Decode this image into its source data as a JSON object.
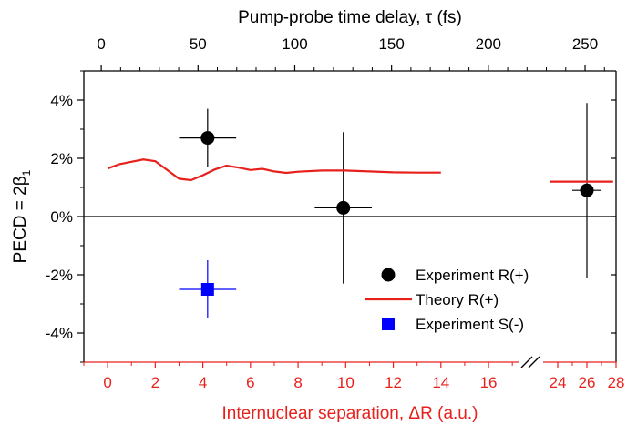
{
  "chart_data": {
    "type": "scatter",
    "title": "",
    "top_axis": {
      "label": "Pump-probe time delay, τ (fs)",
      "range": [
        -9,
        266
      ],
      "ticks": [
        0,
        50,
        100,
        150,
        200,
        250
      ],
      "tick_labels": [
        "0",
        "50",
        "100",
        "150",
        "200",
        "250"
      ]
    },
    "bottom_axis": {
      "label": "Internuclear separation, ΔR (a.u.)",
      "segments": [
        {
          "range": [
            -1,
            17.3
          ],
          "ticks": [
            0,
            2,
            4,
            6,
            8,
            10,
            12,
            14,
            16
          ],
          "tick_labels": [
            "0",
            "2",
            "4",
            "6",
            "8",
            "10",
            "12",
            "14",
            "16"
          ]
        },
        {
          "range": [
            23.0,
            28.0
          ],
          "ticks": [
            24,
            26,
            28
          ],
          "tick_labels": [
            "24",
            "26",
            "28"
          ]
        }
      ],
      "color": "#e8201c"
    },
    "y_axis": {
      "label": "PECD = 2β1",
      "range": [
        -5.0,
        5.0
      ],
      "ticks": [
        -4,
        -2,
        0,
        2,
        4
      ],
      "tick_labels": [
        "-4%",
        "-2%",
        "0%",
        "2%",
        "4%"
      ],
      "unit": "%"
    },
    "legend_position": "lower-right",
    "series": [
      {
        "name": "Experiment R(+)",
        "kind": "points",
        "marker": "circle",
        "color": "#000000",
        "points": [
          {
            "x": 4.2,
            "y": 2.7,
            "xerr": 1.2,
            "yerr": 1.0
          },
          {
            "x": 9.9,
            "y": 0.3,
            "xerr": 1.2,
            "yerr": 2.6
          },
          {
            "x": 26.0,
            "y": 0.9,
            "xerr": 1.0,
            "yerr": 3.0
          }
        ]
      },
      {
        "name": "Theory R(+)",
        "kind": "line",
        "color": "#e8201c",
        "segments": [
          [
            [
              0.0,
              1.65
            ],
            [
              0.5,
              1.8
            ],
            [
              1.0,
              1.88
            ],
            [
              1.5,
              1.96
            ],
            [
              2.0,
              1.9
            ],
            [
              2.5,
              1.6
            ],
            [
              3.0,
              1.3
            ],
            [
              3.5,
              1.25
            ],
            [
              4.0,
              1.42
            ],
            [
              4.5,
              1.62
            ],
            [
              5.0,
              1.75
            ],
            [
              5.5,
              1.68
            ],
            [
              6.0,
              1.6
            ],
            [
              6.5,
              1.64
            ],
            [
              7.0,
              1.55
            ],
            [
              7.5,
              1.5
            ],
            [
              8.0,
              1.54
            ],
            [
              9.0,
              1.58
            ],
            [
              10.0,
              1.58
            ],
            [
              11.0,
              1.55
            ],
            [
              12.0,
              1.52
            ],
            [
              13.0,
              1.51
            ],
            [
              14.0,
              1.51
            ]
          ],
          [
            [
              23.5,
              1.2
            ],
            [
              27.8,
              1.2
            ]
          ]
        ]
      },
      {
        "name": "Experiment S(-)",
        "kind": "points",
        "marker": "square",
        "color": "#0000ff",
        "points": [
          {
            "x": 4.2,
            "y": -2.5,
            "xerr": 1.2,
            "yerr": 1.0
          }
        ]
      }
    ]
  }
}
